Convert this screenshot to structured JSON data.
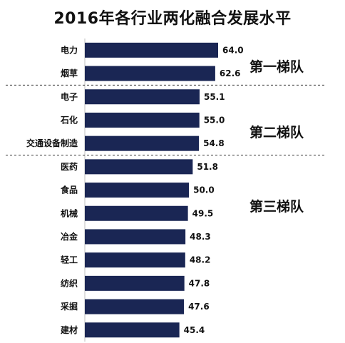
{
  "chart_data": {
    "type": "bar",
    "orientation": "horizontal",
    "title": "2016年各行业两化融合发展水平",
    "categories": [
      "电力",
      "烟草",
      "电子",
      "石化",
      "交通设备制造",
      "医药",
      "食品",
      "机械",
      "冶金",
      "轻工",
      "纺织",
      "采掘",
      "建材"
    ],
    "values": [
      64.0,
      62.6,
      55.1,
      55.0,
      54.8,
      51.8,
      50.0,
      49.5,
      48.3,
      48.2,
      47.8,
      47.6,
      45.4
    ],
    "value_labels": [
      "64.0",
      "62.6",
      "55.1",
      "55.0",
      "54.8",
      "51.8",
      "50.0",
      "49.5",
      "48.3",
      "48.2",
      "47.8",
      "47.6",
      "45.4"
    ],
    "groups": [
      {
        "label": "第一梯队",
        "start": 0,
        "end": 1
      },
      {
        "label": "第二梯队",
        "start": 2,
        "end": 4
      },
      {
        "label": "第三梯队",
        "start": 5,
        "end": 12
      }
    ],
    "bar_color": "#1a2654",
    "xlim": [
      0,
      64
    ],
    "grid": false,
    "legend": "none"
  }
}
